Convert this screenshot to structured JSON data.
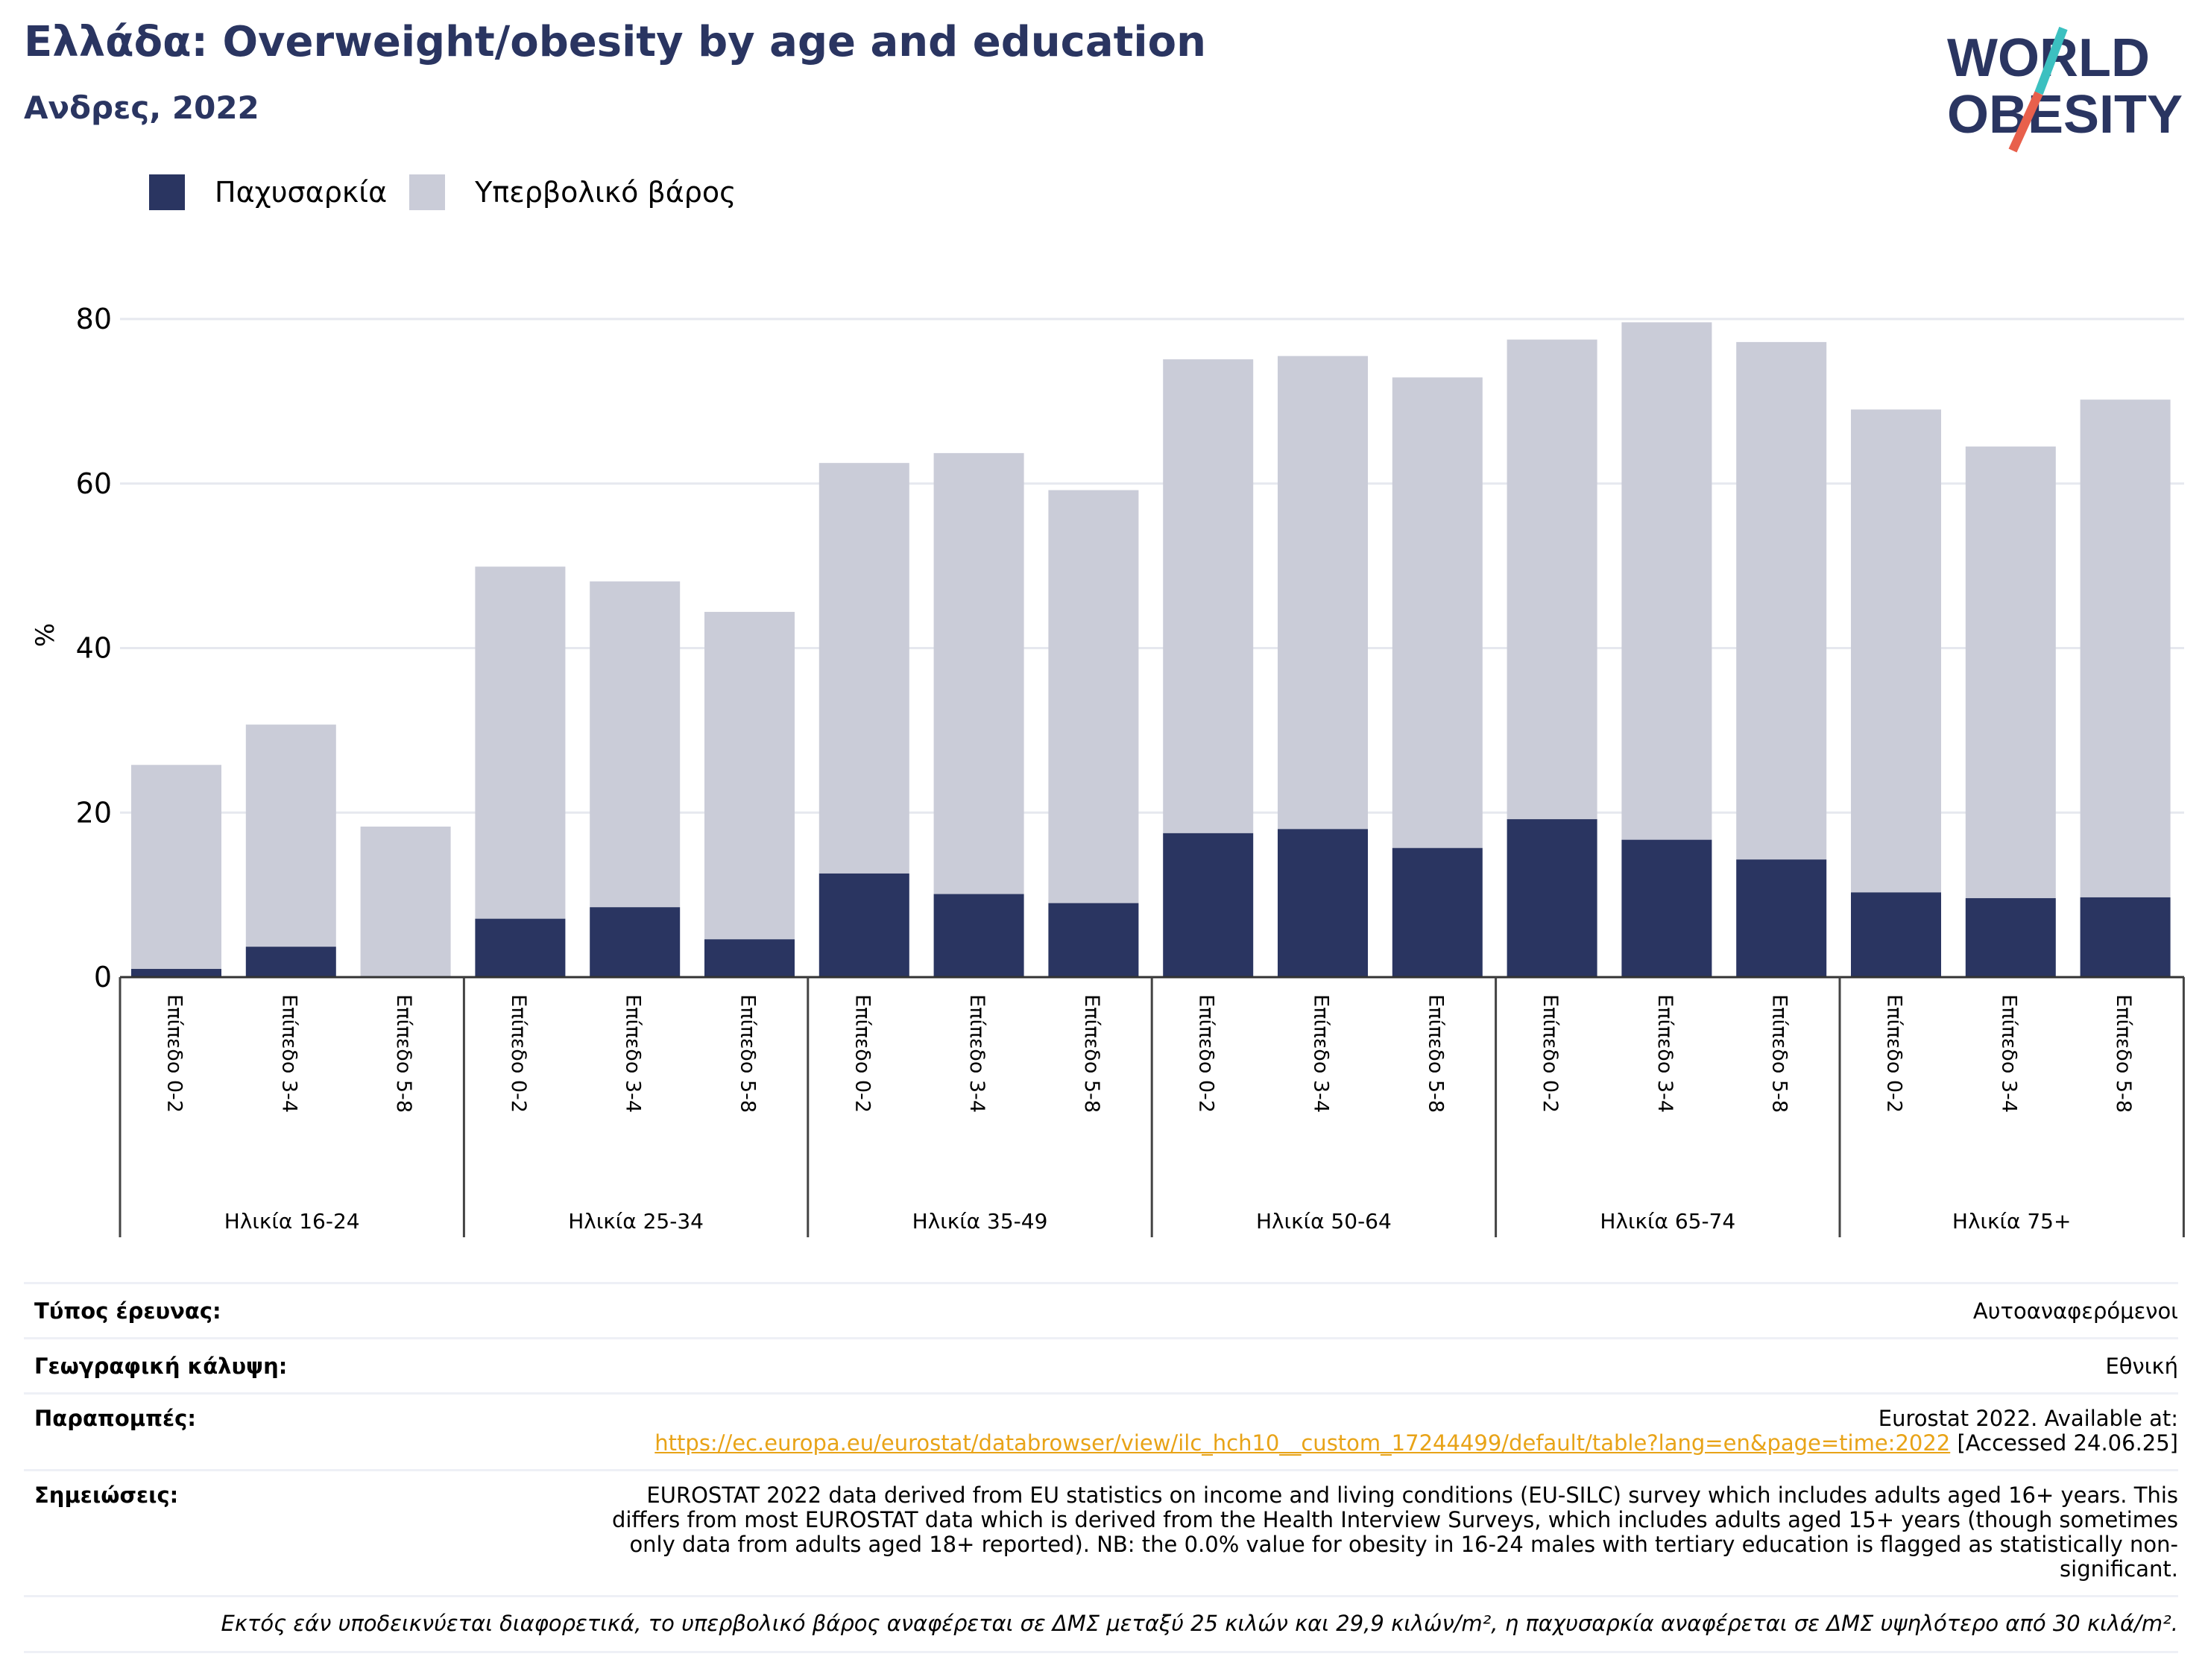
{
  "header": {
    "title": "Ελλάδα: Overweight/obesity by age and education",
    "subtitle": "Ανδρες, 2022"
  },
  "logo": {
    "line1": "WORLD",
    "line2": "OBESITY",
    "icon": "world-obesity-logo"
  },
  "colors": {
    "obesity": "#2a3561",
    "overweight": "#caccd8",
    "accent_teal": "#3cc0c0",
    "accent_red": "#e8604c",
    "link": "#e8a317"
  },
  "chart_data": {
    "type": "bar",
    "stacked": true,
    "categories": [
      "Επίπεδο 0-2",
      "Επίπεδο 3-4",
      "Επίπεδο 5-8",
      "Επίπεδο 0-2",
      "Επίπεδο 3-4",
      "Επίπεδο 5-8",
      "Επίπεδο 0-2",
      "Επίπεδο 3-4",
      "Επίπεδο 5-8",
      "Επίπεδο 0-2",
      "Επίπεδο 3-4",
      "Επίπεδο 5-8",
      "Επίπεδο 0-2",
      "Επίπεδο 3-4",
      "Επίπεδο 5-8",
      "Επίπεδο 0-2",
      "Επίπεδο 3-4",
      "Επίπεδο 5-8"
    ],
    "groups": [
      "Ηλικία 16-24",
      "Ηλικία 25-34",
      "Ηλικία 35-49",
      "Ηλικία 50-64",
      "Ηλικία 65-74",
      "Ηλικία 75+"
    ],
    "series": [
      {
        "name": "Παχυσαρκία",
        "values": [
          1.0,
          3.7,
          0.0,
          7.1,
          8.5,
          4.6,
          12.6,
          10.1,
          9.0,
          17.5,
          18.0,
          15.7,
          19.2,
          16.7,
          14.3,
          10.3,
          9.6,
          9.7
        ]
      },
      {
        "name": "Υπερβολικό βάρος",
        "values": [
          24.8,
          27.0,
          18.3,
          42.8,
          39.6,
          39.8,
          49.9,
          53.6,
          50.2,
          57.6,
          57.5,
          57.2,
          58.3,
          62.9,
          62.9,
          58.7,
          54.9,
          60.5
        ]
      }
    ],
    "totals": [
      25.8,
      30.7,
      18.3,
      49.9,
      48.1,
      44.4,
      62.5,
      63.7,
      59.2,
      75.1,
      75.5,
      72.9,
      77.5,
      79.6,
      77.2,
      69.0,
      64.5,
      70.2
    ],
    "ylabel": "%",
    "yticks": [
      0,
      20,
      40,
      60,
      80
    ],
    "ylim": [
      0,
      80
    ],
    "grid": true,
    "legend_position": "top-left"
  },
  "info": {
    "survey_label": "Τύπος έρευνας:",
    "survey_value": "Αυτοαναφερόμενοι",
    "coverage_label": "Γεωγραφική κάλυψη:",
    "coverage_value": "Εθνική",
    "refs_label": "Παραπομπές:",
    "refs_line1": "Eurostat 2022. Available at:",
    "refs_link": "https://ec.europa.eu/eurostat/databrowser/view/ilc_hch10__custom_17244499/default/table?lang=en&page=time:2022",
    "refs_accessed": " [Accessed 24.06.25]",
    "notes_label": "Σημειώσεις:",
    "notes_value": "EUROSTAT 2022 data derived from EU statistics on income and living conditions (EU-SILC) survey which includes adults aged 16+ years. This differs from most EUROSTAT data which is derived from the Health Interview Surveys, which includes adults aged 15+ years (though sometimes only data from adults aged 18+ reported). NB: the 0.0% value for obesity in 16-24 males with tertiary education is flagged as statistically non-significant.",
    "footnote": "Εκτός εάν υποδεικνύεται διαφορετικά, το υπερβολικό βάρος αναφέρεται σε ΔΜΣ μεταξύ 25 κιλών και 29,9 κιλών/m², η παχυσαρκία αναφέρεται σε ΔΜΣ υψηλότερο από 30 κιλά/m²."
  }
}
